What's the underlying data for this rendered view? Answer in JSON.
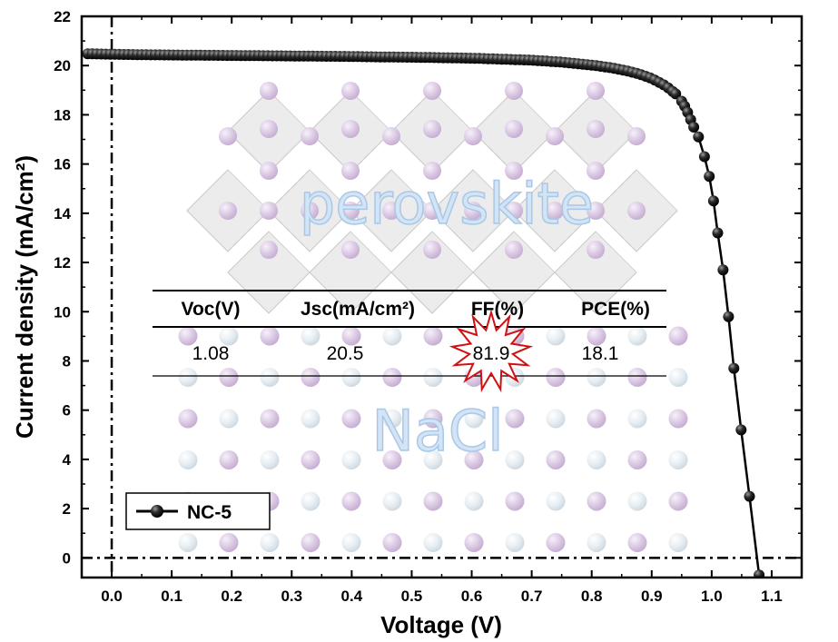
{
  "chart_data": {
    "type": "scatter",
    "xlabel": "Voltage (V)",
    "ylabel": "Current density (mA/cm²)",
    "xlim": [
      -0.05,
      1.15
    ],
    "ylim": [
      -0.8,
      22
    ],
    "x_ticks": [
      0.0,
      0.1,
      0.2,
      0.3,
      0.4,
      0.5,
      0.6,
      0.7,
      0.8,
      0.9,
      1.0,
      1.1
    ],
    "y_ticks": [
      0,
      2,
      4,
      6,
      8,
      10,
      12,
      14,
      16,
      18,
      20,
      22
    ],
    "reference_lines": [
      {
        "orientation": "vertical",
        "x": 0.0,
        "style": "dash-dot"
      },
      {
        "orientation": "horizontal",
        "y": 0.0,
        "style": "dash-dot"
      }
    ],
    "series": [
      {
        "name": "NC-5",
        "marker": "filled-sphere",
        "color": "#000000",
        "points": [
          [
            -0.04,
            20.48
          ],
          [
            -0.02,
            20.47
          ],
          [
            0.0,
            20.46
          ],
          [
            0.05,
            20.44
          ],
          [
            0.1,
            20.43
          ],
          [
            0.15,
            20.42
          ],
          [
            0.2,
            20.41
          ],
          [
            0.25,
            20.4
          ],
          [
            0.3,
            20.39
          ],
          [
            0.35,
            20.38
          ],
          [
            0.4,
            20.37
          ],
          [
            0.45,
            20.35
          ],
          [
            0.5,
            20.34
          ],
          [
            0.55,
            20.32
          ],
          [
            0.6,
            20.3
          ],
          [
            0.65,
            20.26
          ],
          [
            0.7,
            20.22
          ],
          [
            0.75,
            20.14
          ],
          [
            0.8,
            20.02
          ],
          [
            0.83,
            19.92
          ],
          [
            0.86,
            19.78
          ],
          [
            0.88,
            19.65
          ],
          [
            0.9,
            19.48
          ],
          [
            0.92,
            19.22
          ],
          [
            0.93,
            19.05
          ],
          [
            0.94,
            18.85
          ],
          [
            0.95,
            18.55
          ],
          [
            0.955,
            18.35
          ],
          [
            0.96,
            18.1
          ],
          [
            0.965,
            17.8
          ],
          [
            0.97,
            17.5
          ],
          [
            0.978,
            17.1
          ],
          [
            0.988,
            16.3
          ],
          [
            0.996,
            15.5
          ],
          [
            1.003,
            14.5
          ],
          [
            1.01,
            13.2
          ],
          [
            1.019,
            11.7
          ],
          [
            1.028,
            9.8
          ],
          [
            1.037,
            7.7
          ],
          [
            1.049,
            5.2
          ],
          [
            1.063,
            2.5
          ],
          [
            1.079,
            -0.7
          ]
        ]
      }
    ],
    "legend": {
      "entries": [
        "NC-5"
      ],
      "position": "bottom-left"
    }
  },
  "table": {
    "headers": [
      "Voc(V)",
      "Jsc(mA/cm²)",
      "FF(%)",
      "PCE(%)"
    ],
    "values": [
      "1.08",
      "20.5",
      "81.9",
      "18.1"
    ]
  },
  "watermarks": {
    "top": "perovskite",
    "bottom": "NaCl"
  },
  "colors": {
    "axis": "#000000",
    "curve": "#000000",
    "starburst": "#d11111",
    "sphere_purple": "#d9c5e2",
    "sphere_white": "#e5ecf1",
    "octahedron": "#d7d7d7"
  }
}
